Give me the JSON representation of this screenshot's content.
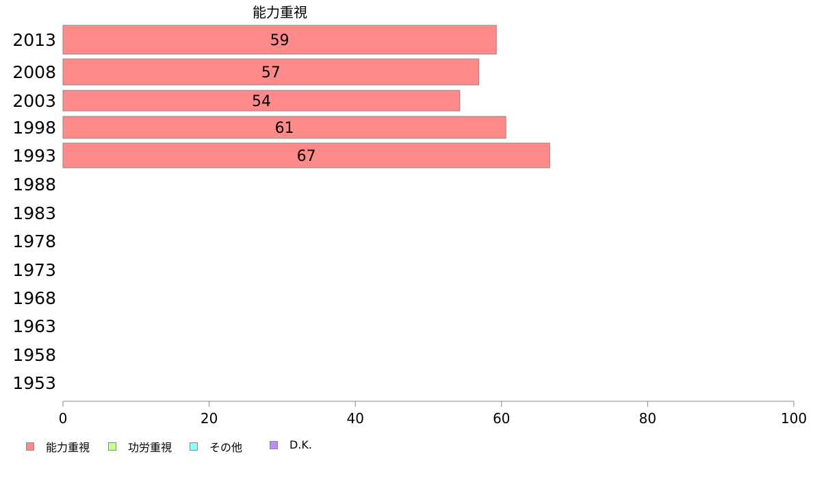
{
  "chart_data": {
    "type": "bar",
    "orientation": "horizontal",
    "stacked": true,
    "title": "能力重視",
    "categories": [
      "2013",
      "2008",
      "2003",
      "1998",
      "1993",
      "1988",
      "1983",
      "1978",
      "1973",
      "1968",
      "1963",
      "1958",
      "1953"
    ],
    "series": [
      {
        "name": "能力重視",
        "color": "#ff8a8a",
        "values": [
          59,
          57,
          54,
          61,
          67,
          null,
          null,
          null,
          null,
          null,
          null,
          null,
          null
        ]
      }
    ],
    "bar_value_display": [
      59,
      57,
      54,
      61,
      67
    ],
    "bar_values_drawn": [
      59.3,
      56.9,
      54.3,
      60.6,
      66.6
    ],
    "xlim": [
      0,
      100
    ],
    "xticks": [
      0,
      20,
      40,
      60,
      80,
      100
    ],
    "xlabel": "",
    "ylabel": "",
    "grid": false,
    "legend_position": "bottom-left"
  },
  "legend": [
    {
      "label": "能力重視",
      "color": "#ff8a8a"
    },
    {
      "label": "功労重視",
      "color": "#c6ff8a"
    },
    {
      "label": "その他",
      "color": "#8affff"
    },
    {
      "label": "D.K.",
      "color": "#c08aff"
    }
  ]
}
